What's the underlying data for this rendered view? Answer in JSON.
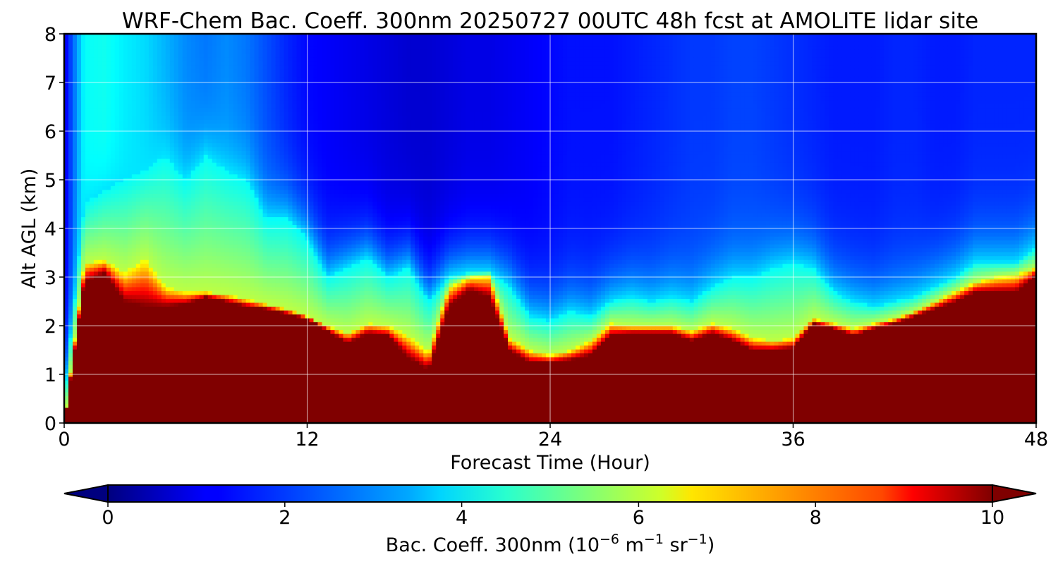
{
  "chart_data": {
    "type": "heatmap",
    "title": "WRF-Chem Bac. Coeff. 300nm  20250727 00UTC 48h fcst at AMOLITE lidar site",
    "xlabel": "Forecast Time (Hour)",
    "ylabel": "Alt AGL (km)",
    "xlim": [
      0,
      48
    ],
    "ylim": [
      0,
      8
    ],
    "x_ticks": [
      "0",
      "12",
      "24",
      "36",
      "48"
    ],
    "y_ticks": [
      "0",
      "1",
      "2",
      "3",
      "4",
      "5",
      "6",
      "7",
      "8"
    ],
    "grid": true,
    "colorbar": {
      "label_main": "Bac. Coeff. 300nm  (10",
      "label_exp1": "−6",
      "label_mid": " m",
      "label_exp2": "−1",
      "label_mid2": " sr",
      "label_exp3": "−1",
      "label_end": ")",
      "range": [
        0,
        10
      ],
      "ticks": [
        "0",
        "2",
        "4",
        "6",
        "8",
        "10"
      ],
      "extend": "both",
      "colormap": "jet"
    },
    "time_hours": [
      0,
      1,
      2,
      3,
      4,
      5,
      6,
      7,
      8,
      9,
      10,
      11,
      12,
      13,
      14,
      15,
      16,
      17,
      18,
      19,
      20,
      21,
      22,
      23,
      24,
      25,
      26,
      27,
      28,
      29,
      30,
      31,
      32,
      33,
      34,
      35,
      36,
      37,
      38,
      39,
      40,
      41,
      42,
      43,
      44,
      45,
      46,
      47,
      48
    ],
    "saturated_layer_top_km": [
      0.0,
      2.9,
      3.1,
      2.5,
      2.4,
      2.4,
      2.45,
      2.6,
      2.5,
      2.4,
      2.35,
      2.25,
      2.15,
      1.9,
      1.65,
      1.85,
      1.8,
      1.35,
      1.1,
      2.4,
      2.75,
      2.6,
      1.5,
      1.25,
      1.25,
      1.3,
      1.4,
      1.8,
      1.85,
      1.85,
      1.85,
      1.7,
      1.85,
      1.7,
      1.5,
      1.5,
      1.55,
      2.05,
      1.95,
      1.8,
      1.95,
      2.05,
      2.2,
      2.35,
      2.5,
      2.7,
      2.7,
      2.7,
      3.05
    ],
    "boundary_peak_km": [
      0.0,
      3.3,
      3.35,
      3.1,
      3.4,
      2.8,
      2.7,
      2.7,
      2.65,
      2.55,
      2.45,
      2.35,
      2.2,
      2.0,
      1.85,
      2.05,
      2.0,
      1.8,
      1.45,
      2.8,
      3.0,
      3.05,
      1.75,
      1.5,
      1.4,
      1.5,
      1.7,
      2.05,
      2.0,
      2.0,
      2.0,
      1.9,
      2.05,
      1.95,
      1.75,
      1.7,
      1.75,
      2.15,
      2.05,
      1.95,
      2.05,
      2.15,
      2.3,
      2.5,
      2.7,
      2.9,
      3.0,
      3.05,
      3.2
    ],
    "aerosol_layer_top_km": [
      0.5,
      4.5,
      4.8,
      5.0,
      5.2,
      5.5,
      5.0,
      5.5,
      5.2,
      5.0,
      4.2,
      4.2,
      3.8,
      3.0,
      3.2,
      3.4,
      3.0,
      3.2,
      2.5,
      3.0,
      3.1,
      3.1,
      2.8,
      2.2,
      2.1,
      2.3,
      2.2,
      2.5,
      2.6,
      2.5,
      2.6,
      2.5,
      2.8,
      3.0,
      3.0,
      3.2,
      3.3,
      3.2,
      2.7,
      2.5,
      2.4,
      2.5,
      2.6,
      2.8,
      3.0,
      3.3,
      3.3,
      3.3,
      3.6
    ],
    "free_troposphere_value": [
      1.0,
      3.8,
      3.9,
      3.6,
      3.4,
      3.0,
      2.6,
      2.4,
      2.6,
      2.4,
      2.0,
      1.6,
      1.3,
      1.2,
      1.1,
      1.0,
      0.9,
      0.8,
      0.8,
      0.9,
      1.0,
      1.0,
      1.1,
      1.2,
      1.3,
      1.4,
      1.4,
      1.4,
      1.5,
      1.6,
      1.7,
      1.8,
      1.8,
      1.9,
      1.9,
      1.8,
      1.7,
      1.6,
      1.5,
      1.5,
      1.5,
      1.6,
      1.6,
      1.5,
      1.5,
      1.6,
      1.6,
      1.6,
      1.6
    ]
  }
}
